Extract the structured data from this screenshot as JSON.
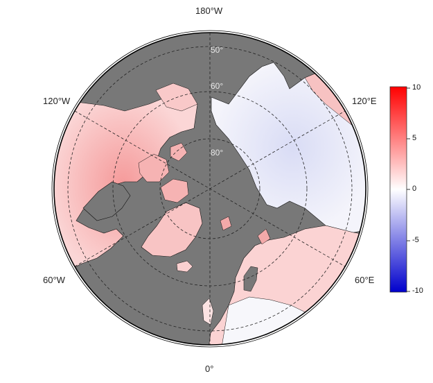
{
  "map": {
    "projection": "north-polar-stereographic",
    "lon_labels": {
      "top": "180°W",
      "upper_left": "120°W",
      "upper_right": "120°E",
      "lower_left": "60°W",
      "lower_right": "60°E",
      "bottom": "0°"
    },
    "lat_labels": [
      "50°",
      "60°",
      "80°"
    ],
    "colors": {
      "ocean": "#787878",
      "positive": "#ff0000",
      "neutral": "#ffffff",
      "negative": "#0000ff"
    }
  },
  "colorbar": {
    "min": -10,
    "max": 10,
    "ticks": [
      "10",
      "5",
      "0",
      "-5",
      "-10"
    ],
    "colors": [
      "#ff0000",
      "#ffffff",
      "#0000cc"
    ]
  }
}
